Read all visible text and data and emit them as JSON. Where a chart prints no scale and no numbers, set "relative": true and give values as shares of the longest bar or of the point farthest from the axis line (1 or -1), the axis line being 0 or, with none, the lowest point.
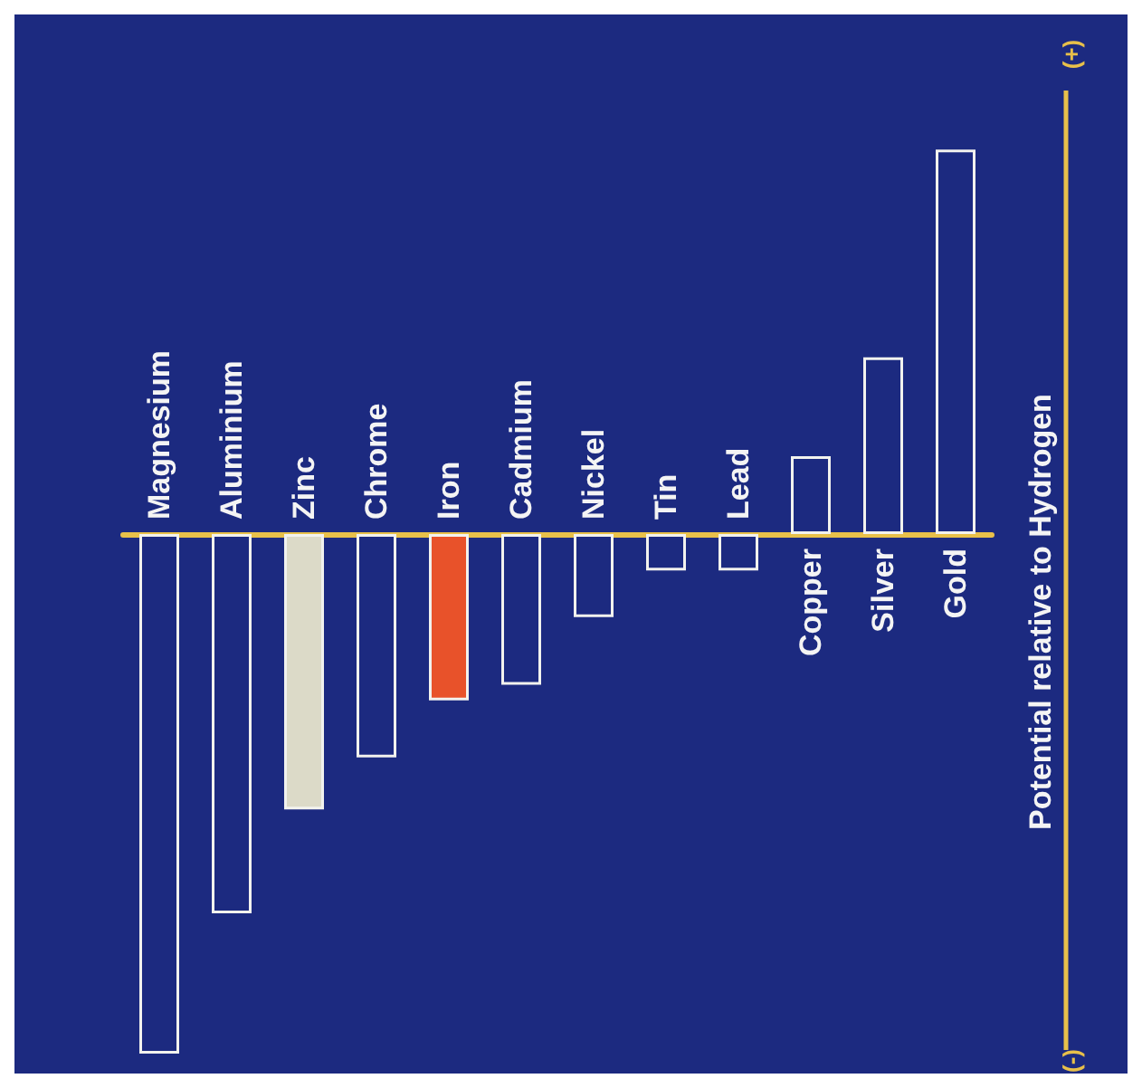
{
  "chart_data": {
    "type": "bar",
    "relative": true,
    "ylabel": "Potential relative to Hydrogen",
    "annotations": [
      "(+)",
      "(-)"
    ],
    "categories": [
      "Magnesium",
      "Aluminium",
      "Zinc",
      "Chrome",
      "Iron",
      "Cadmium",
      "Nickel",
      "Tin",
      "Lead",
      "Copper",
      "Silver",
      "Gold"
    ],
    "values": [
      -1,
      -0.73,
      -0.53,
      -0.43,
      -0.32,
      -0.29,
      -0.16,
      -0.07,
      -0.07,
      0.15,
      0.34,
      0.74
    ],
    "colors": [
      "#1c2a80",
      "#1c2a80",
      "#dcdac8",
      "#1c2a80",
      "#e8522a",
      "#1c2a80",
      "#1c2a80",
      "#1c2a80",
      "#1c2a80",
      "#1c2a80",
      "#1c2a80",
      "#1c2a80"
    ],
    "grid": false
  }
}
